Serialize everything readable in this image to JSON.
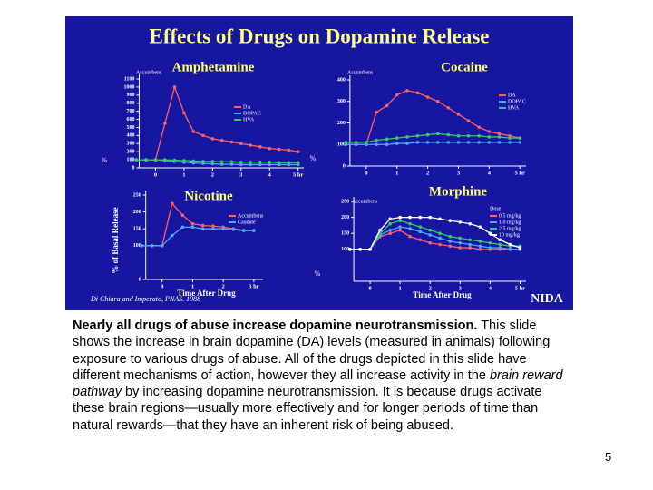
{
  "slide": {
    "title": "Effects of Drugs on Dopamine Release",
    "credit": "Di Chiara and Imperato, PNAS. 1988",
    "logo": "NIDA",
    "caption_bold": "Nearly all drugs of abuse increase dopamine neurotransmission.",
    "caption_text1": " This slide shows the increase in brain dopamine (DA) levels (measured in animals) following exposure to various drugs of abuse.  All of the drugs depicted in this slide have different mechanisms of action, however they all increase activity in the ",
    "caption_italic": "brain reward pathway",
    "caption_text2": " by increasing dopamine neurotransmission. It is because drugs activate these brain regions—usually more effectively and for longer periods of time than natural rewards—that they have an inherent risk of being abused.",
    "page_number": "5",
    "shared_y_label": "% of Basal Release"
  },
  "chart_data": [
    {
      "type": "line",
      "title": "Amphetamine",
      "subtitle": "Accumbens",
      "y_label": "%",
      "x": [
        -0.67,
        -0.33,
        0,
        0.33,
        0.67,
        1,
        1.33,
        1.67,
        2,
        2.33,
        2.67,
        3,
        3.33,
        3.67,
        4,
        4.33,
        4.67,
        5
      ],
      "series": [
        {
          "name": "DA",
          "color": "#ff6060",
          "values": [
            100,
            100,
            100,
            550,
            1000,
            680,
            450,
            400,
            360,
            340,
            320,
            300,
            280,
            260,
            240,
            230,
            220,
            200
          ]
        },
        {
          "name": "DOPAC",
          "color": "#4da6ff",
          "values": [
            100,
            100,
            100,
            90,
            80,
            70,
            60,
            55,
            50,
            45,
            45,
            40,
            40,
            40,
            40,
            40,
            40,
            40
          ]
        },
        {
          "name": "HVA",
          "color": "#33cc66",
          "values": [
            100,
            100,
            100,
            100,
            95,
            90,
            85,
            80,
            80,
            75,
            75,
            70,
            70,
            70,
            70,
            65,
            65,
            65
          ]
        }
      ],
      "xlim": [
        -1,
        5.2
      ],
      "xticks": [
        0,
        1,
        2,
        3,
        4,
        {
          "value": 5,
          "label": "5 hr"
        }
      ],
      "ylim": [
        0,
        1100
      ],
      "yticks": [
        0,
        100,
        200,
        300,
        400,
        500,
        600,
        700,
        800,
        900,
        1000,
        1100
      ]
    },
    {
      "type": "line",
      "title": "Cocaine",
      "subtitle": "Accumbens",
      "y_label": "%",
      "x": [
        -0.67,
        -0.33,
        0,
        0.33,
        0.67,
        1,
        1.33,
        1.67,
        2,
        2.33,
        2.67,
        3,
        3.33,
        3.67,
        4,
        4.33,
        4.67,
        5
      ],
      "series": [
        {
          "name": "DA",
          "color": "#ff6060",
          "values": [
            100,
            100,
            100,
            250,
            280,
            330,
            350,
            340,
            320,
            300,
            270,
            240,
            210,
            180,
            160,
            150,
            140,
            130
          ]
        },
        {
          "name": "DOPAC",
          "color": "#4da6ff",
          "values": [
            100,
            100,
            100,
            100,
            100,
            105,
            105,
            110,
            110,
            110,
            110,
            110,
            110,
            110,
            110,
            110,
            110,
            110
          ]
        },
        {
          "name": "HVA",
          "color": "#33cc66",
          "values": [
            110,
            110,
            110,
            120,
            125,
            130,
            135,
            140,
            145,
            150,
            145,
            140,
            140,
            140,
            135,
            135,
            130,
            130
          ]
        }
      ],
      "xlim": [
        -1,
        5.2
      ],
      "xticks": [
        0,
        1,
        2,
        3,
        4,
        {
          "value": 5,
          "label": "5 hr"
        }
      ],
      "ylim": [
        0,
        400
      ],
      "yticks": [
        0,
        100,
        200,
        300,
        400
      ]
    },
    {
      "type": "line",
      "title": "Nicotine",
      "x_label": "Time After Drug",
      "x": [
        -0.67,
        -0.33,
        0,
        0.33,
        0.67,
        1,
        1.33,
        1.67,
        2,
        2.33,
        2.67,
        3
      ],
      "series": [
        {
          "name": "Accumbens",
          "color": "#ff6060",
          "values": [
            100,
            100,
            100,
            225,
            190,
            165,
            160,
            158,
            155,
            150,
            145,
            145
          ]
        },
        {
          "name": "Caudate",
          "color": "#4da6ff",
          "values": [
            100,
            100,
            100,
            130,
            155,
            155,
            150,
            150,
            150,
            148,
            145,
            145
          ]
        }
      ],
      "xlim": [
        -1,
        3.3
      ],
      "xticks": [
        0,
        1,
        2,
        {
          "value": 3,
          "label": "3 hr"
        }
      ],
      "ylim": [
        0,
        250
      ],
      "yticks": [
        0,
        100,
        150,
        200,
        250
      ]
    },
    {
      "type": "line",
      "title": "Morphine",
      "subtitle": "Accumbens",
      "y_label": "%",
      "x_label": "Time After Drug",
      "legend_title": "Dose",
      "x": [
        -0.67,
        -0.33,
        0,
        0.33,
        0.67,
        1,
        1.33,
        1.67,
        2,
        2.33,
        2.67,
        3,
        3.33,
        3.67,
        4,
        4.33,
        4.67,
        5
      ],
      "series": [
        {
          "name": "0.5 mg/kg",
          "color": "#ff6060",
          "values": [
            100,
            100,
            100,
            140,
            150,
            160,
            140,
            130,
            120,
            115,
            110,
            105,
            105,
            100,
            100,
            100,
            100,
            100
          ]
        },
        {
          "name": "1.0 mg/kg",
          "color": "#4da6ff",
          "values": [
            100,
            100,
            100,
            145,
            160,
            170,
            165,
            155,
            145,
            135,
            125,
            120,
            115,
            110,
            105,
            105,
            100,
            100
          ]
        },
        {
          "name": "2.5 mg/kg",
          "color": "#33cc66",
          "values": [
            100,
            100,
            100,
            150,
            180,
            190,
            180,
            170,
            160,
            150,
            140,
            135,
            130,
            125,
            120,
            115,
            110,
            110
          ]
        },
        {
          "name": "10 mg/kg",
          "color": "#ffffff",
          "values": [
            100,
            100,
            100,
            160,
            195,
            200,
            200,
            200,
            200,
            195,
            190,
            185,
            180,
            170,
            150,
            130,
            115,
            105
          ]
        }
      ],
      "xlim": [
        -1,
        5.2
      ],
      "xticks": [
        0,
        1,
        2,
        3,
        4,
        {
          "value": 5,
          "label": "5 hr"
        }
      ],
      "ylim": [
        0,
        250
      ],
      "yticks": [
        100,
        150,
        200,
        250
      ]
    }
  ]
}
